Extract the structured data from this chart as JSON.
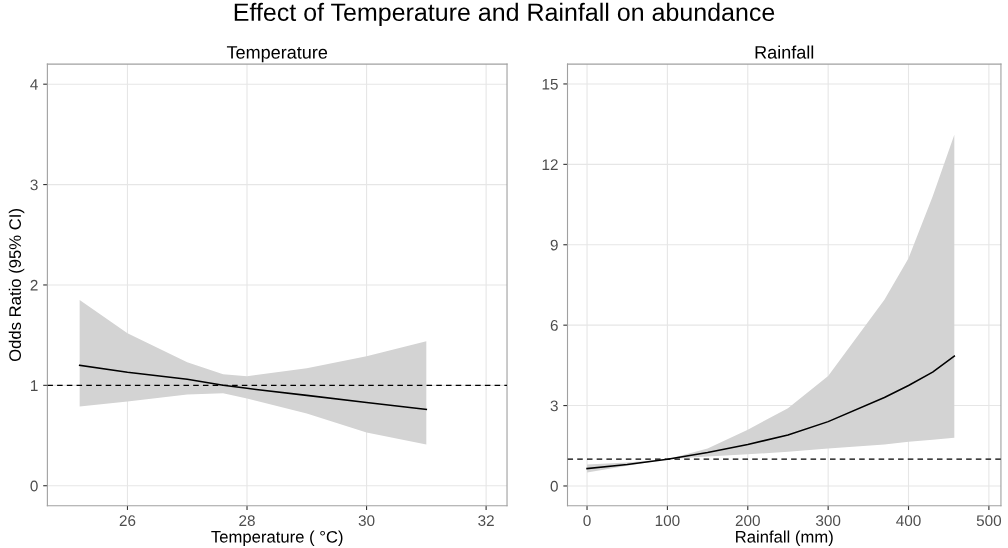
{
  "chart_data": [
    {
      "type": "line",
      "title": "Effect of Temperature and Rainfall on abundance",
      "subtitle": "Temperature",
      "xlabel": "Temperature ( °C)",
      "ylabel": "Odds Ratio (95% CI)",
      "series": [
        {
          "color": "#000000",
          "x": [
            25.2,
            26,
            27,
            27.6,
            28,
            29,
            30,
            31
          ],
          "values": [
            1.2,
            1.13,
            1.06,
            1.0,
            0.97,
            0.9,
            0.83,
            0.76
          ],
          "lower": [
            0.79,
            0.84,
            0.91,
            0.92,
            0.87,
            0.72,
            0.53,
            0.41
          ],
          "upper": [
            1.85,
            1.52,
            1.23,
            1.11,
            1.09,
            1.17,
            1.29,
            1.44
          ]
        }
      ],
      "xlim": [
        24.66,
        32.35
      ],
      "ylim": [
        -0.2,
        4.2
      ],
      "xticks": [
        26,
        28,
        30,
        32
      ],
      "yticks": [
        0,
        1,
        2,
        3,
        4
      ],
      "ref_lines": [
        {
          "axis": "y",
          "value": 1,
          "line_style": "dashed"
        }
      ],
      "grid": true
    },
    {
      "type": "line",
      "subtitle": "Rainfall",
      "xlabel": "Rainfall (mm)",
      "series": [
        {
          "color": "#000000",
          "x": [
            0,
            50,
            100,
            150,
            200,
            250,
            300,
            370,
            400,
            430,
            457
          ],
          "values": [
            0.65,
            0.8,
            1.0,
            1.25,
            1.55,
            1.9,
            2.4,
            3.3,
            3.75,
            4.25,
            4.85
          ],
          "lower": [
            0.5,
            0.75,
            1.0,
            1.1,
            1.18,
            1.28,
            1.4,
            1.55,
            1.65,
            1.72,
            1.8
          ],
          "upper": [
            0.8,
            0.88,
            1.0,
            1.4,
            2.1,
            2.9,
            4.1,
            6.95,
            8.5,
            10.8,
            13.1
          ]
        }
      ],
      "xlim": [
        -24.3,
        515
      ],
      "ylim": [
        -0.74,
        15.74
      ],
      "xticks": [
        0,
        100,
        200,
        300,
        400,
        500
      ],
      "yticks": [
        0,
        3,
        6,
        9,
        12,
        15
      ],
      "ref_lines": [
        {
          "axis": "y",
          "value": 1,
          "line_style": "dashed"
        }
      ],
      "grid": true
    }
  ]
}
